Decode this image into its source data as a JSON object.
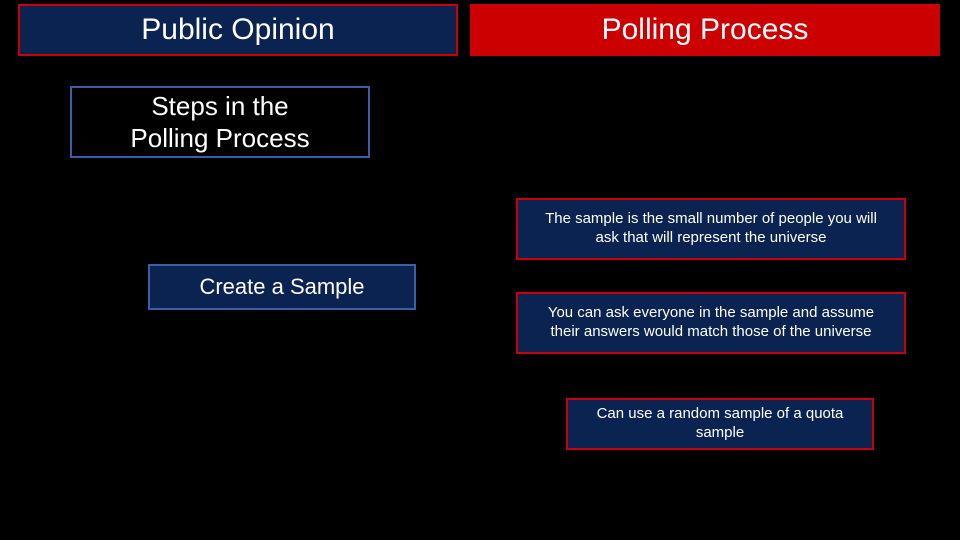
{
  "colors": {
    "background": "#000000",
    "navy": "#0a2351",
    "red": "#cc0000",
    "blue_border": "#3a5fa8",
    "text": "#ffffff"
  },
  "header": {
    "left": "Public Opinion",
    "right": "Polling Process"
  },
  "subheader": "Steps in the\nPolling Process",
  "step_label": "Create a Sample",
  "details": [
    "The sample is the small number of people you will ask that will represent the universe",
    "You can ask everyone in the sample and assume their answers would match those of the universe",
    "Can use a random sample of a quota sample"
  ]
}
